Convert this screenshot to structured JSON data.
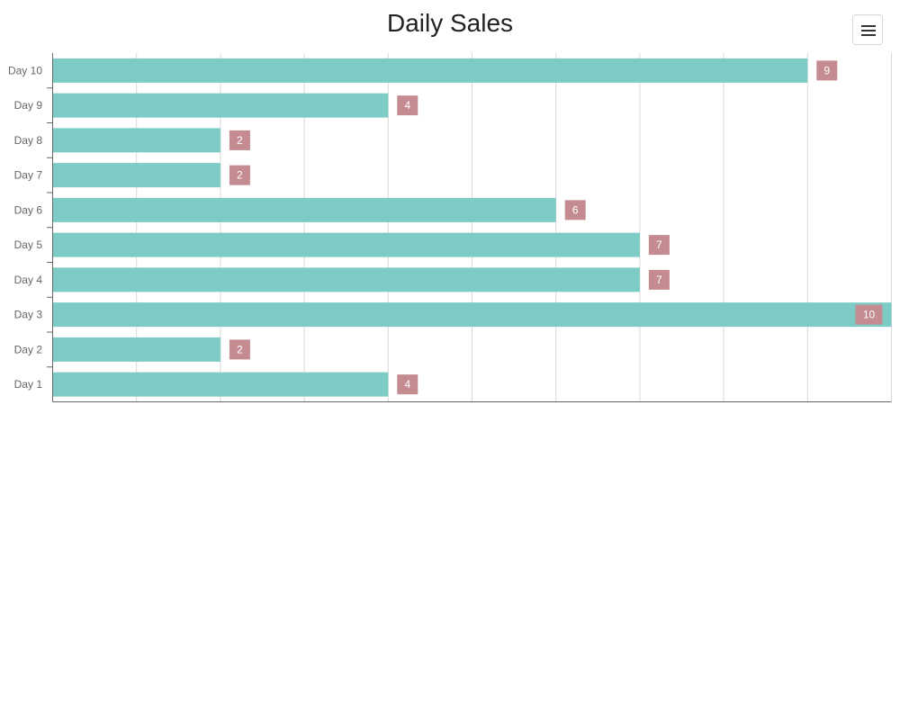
{
  "chart_data": {
    "type": "bar",
    "orientation": "horizontal",
    "title": "Daily Sales",
    "categories": [
      "Day 10",
      "Day 9",
      "Day 8",
      "Day 7",
      "Day 6",
      "Day 5",
      "Day 4",
      "Day 3",
      "Day 2",
      "Day 1"
    ],
    "values": [
      9,
      4,
      2,
      2,
      6,
      7,
      7,
      10,
      2,
      4
    ],
    "xlim": [
      0,
      10
    ],
    "grid": true,
    "legend": "none",
    "colors": {
      "bar": "#7ccbc4",
      "label_background": "#c48b91",
      "grid": "#d9d9d9",
      "axis": "#666666"
    }
  },
  "toolbar": {
    "menu_icon": "hamburger-menu-icon"
  }
}
